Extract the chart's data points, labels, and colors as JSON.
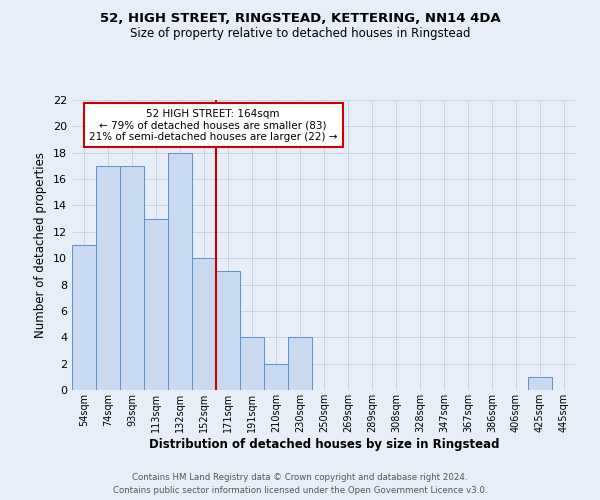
{
  "title1": "52, HIGH STREET, RINGSTEAD, KETTERING, NN14 4DA",
  "title2": "Size of property relative to detached houses in Ringstead",
  "xlabel": "Distribution of detached houses by size in Ringstead",
  "ylabel": "Number of detached properties",
  "categories": [
    "54sqm",
    "74sqm",
    "93sqm",
    "113sqm",
    "132sqm",
    "152sqm",
    "171sqm",
    "191sqm",
    "210sqm",
    "230sqm",
    "250sqm",
    "269sqm",
    "289sqm",
    "308sqm",
    "328sqm",
    "347sqm",
    "367sqm",
    "386sqm",
    "406sqm",
    "425sqm",
    "445sqm"
  ],
  "values": [
    11,
    17,
    17,
    13,
    18,
    10,
    9,
    4,
    2,
    4,
    0,
    0,
    0,
    0,
    0,
    0,
    0,
    0,
    0,
    1,
    0
  ],
  "bar_color": "#c9d9f0",
  "bar_edge_color": "#5b8fd4",
  "grid_color": "#c8d4e8",
  "annotation_text_line1": "52 HIGH STREET: 164sqm",
  "annotation_text_line2": "← 79% of detached houses are smaller (83)",
  "annotation_text_line3": "21% of semi-detached houses are larger (22) →",
  "annotation_box_facecolor": "#ffffff",
  "annotation_box_edgecolor": "#cc0000",
  "annotation_line_color": "#cc0000",
  "ylim": [
    0,
    22
  ],
  "yticks": [
    0,
    2,
    4,
    6,
    8,
    10,
    12,
    14,
    16,
    18,
    20,
    22
  ],
  "footer_line1": "Contains HM Land Registry data © Crown copyright and database right 2024.",
  "footer_line2": "Contains public sector information licensed under the Open Government Licence v3.0.",
  "background_color": "#e8eef8"
}
